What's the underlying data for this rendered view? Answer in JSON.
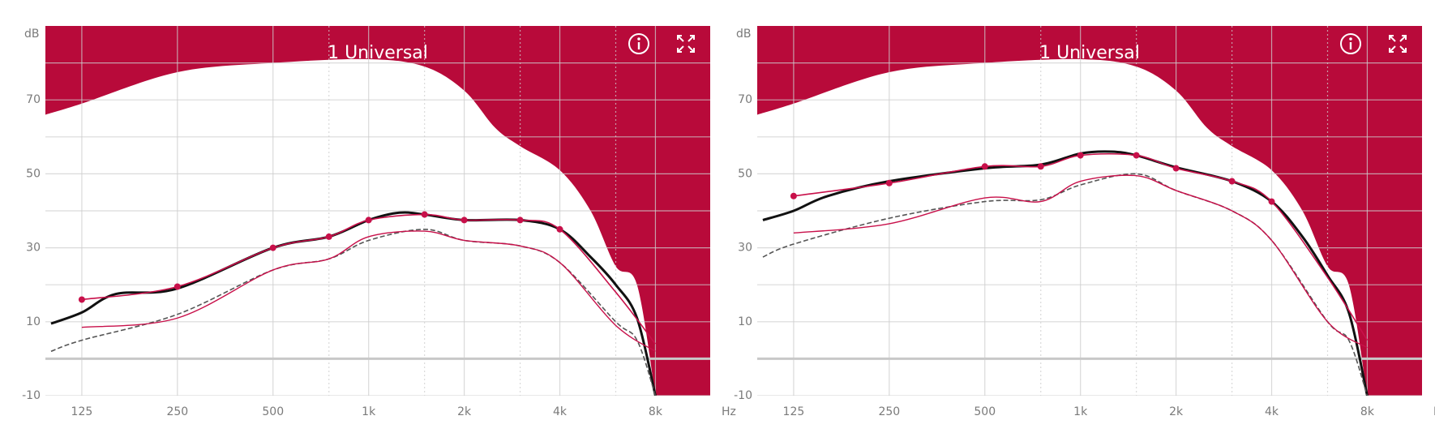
{
  "chart_data": [
    {
      "type": "line",
      "title": "1 Universal",
      "y_label": "dB",
      "x_label": "Hz",
      "log_x": true,
      "xlim": [
        96,
        11900
      ],
      "ylim": [
        -10,
        90
      ],
      "xticks": [
        125,
        250,
        500,
        {
          "value": 1000,
          "label": "1k"
        },
        {
          "value": 2000,
          "label": "2k"
        },
        {
          "value": 4000,
          "label": "4k"
        },
        {
          "value": 8000,
          "label": "8k"
        }
      ],
      "x_dotted_gridlines": [
        750,
        1500,
        3000,
        6000
      ],
      "yticks": [
        -10,
        10,
        30,
        50,
        70
      ],
      "y_minor_gridlines": [
        0,
        20,
        40,
        60,
        80
      ],
      "reference_line": 0,
      "limit_area": {
        "color": "#b80a3a",
        "x": [
          96,
          125,
          250,
          500,
          1000,
          1500,
          2000,
          2500,
          3000,
          4000,
          5000,
          6000,
          7000,
          8000
        ],
        "values": [
          66,
          69,
          77.5,
          80,
          81,
          79,
          72.5,
          62.5,
          57.5,
          51,
          40,
          25,
          20,
          -10
        ]
      },
      "series": [
        {
          "color": "#111111",
          "width": 3,
          "dashed": false,
          "markers": false,
          "x": [
            100,
            125,
            160,
            250,
            500,
            750,
            1000,
            1250,
            1500,
            2000,
            3000,
            4000,
            5000,
            6000,
            7000,
            8000
          ],
          "values": [
            9.5,
            12.5,
            17.5,
            19,
            30,
            33,
            37.5,
            39.5,
            39,
            37.5,
            37.5,
            35,
            27.5,
            20,
            11,
            -10
          ]
        },
        {
          "color": "#555555",
          "width": 1.6,
          "dashed": true,
          "markers": false,
          "x": [
            100,
            125,
            250,
            500,
            750,
            1000,
            1500,
            2000,
            3000,
            4000,
            6000,
            7000,
            8000
          ],
          "values": [
            2,
            5,
            12,
            24,
            27,
            32,
            35,
            32,
            30.5,
            26,
            10,
            5,
            -10
          ]
        },
        {
          "color": "#c8104a",
          "width": 1.6,
          "dashed": false,
          "markers": true,
          "x": [
            125,
            250,
            500,
            750,
            1000,
            1500,
            2000,
            3000,
            4000,
            6000,
            8000
          ],
          "values": [
            16,
            19.5,
            30,
            33,
            37.5,
            39,
            37.5,
            37.5,
            35,
            18,
            4
          ]
        },
        {
          "color": "#c8104a",
          "width": 1.4,
          "dashed": false,
          "markers": false,
          "x": [
            125,
            250,
            500,
            750,
            1000,
            1500,
            2000,
            3000,
            4000,
            6000,
            8000
          ],
          "values": [
            8.5,
            11,
            24,
            27,
            33,
            34.5,
            32,
            30.5,
            26,
            9,
            2
          ]
        }
      ]
    },
    {
      "type": "line",
      "title": "1 Universal",
      "y_label": "dB",
      "x_label": "Hz",
      "log_x": true,
      "xlim": [
        96,
        11900
      ],
      "ylim": [
        -10,
        90
      ],
      "xticks": [
        125,
        250,
        500,
        {
          "value": 1000,
          "label": "1k"
        },
        {
          "value": 2000,
          "label": "2k"
        },
        {
          "value": 4000,
          "label": "4k"
        },
        {
          "value": 8000,
          "label": "8k"
        }
      ],
      "x_dotted_gridlines": [
        750,
        1500,
        3000,
        6000
      ],
      "yticks": [
        -10,
        10,
        30,
        50,
        70
      ],
      "y_minor_gridlines": [
        0,
        20,
        40,
        60,
        80
      ],
      "reference_line": 0,
      "limit_area": {
        "color": "#b80a3a",
        "x": [
          96,
          125,
          250,
          500,
          1000,
          1500,
          2000,
          2500,
          3000,
          4000,
          5000,
          6000,
          7000,
          8000
        ],
        "values": [
          66,
          69,
          77.5,
          80,
          81,
          79,
          72.5,
          62.5,
          57.5,
          51,
          40,
          25,
          20,
          -10
        ]
      },
      "series": [
        {
          "color": "#111111",
          "width": 3,
          "dashed": false,
          "markers": false,
          "x": [
            100,
            125,
            160,
            250,
            500,
            750,
            1000,
            1250,
            1500,
            2000,
            3000,
            4000,
            5000,
            6000,
            7000,
            8000
          ],
          "values": [
            37.5,
            40,
            44,
            48,
            51.5,
            52.5,
            55.5,
            56,
            55,
            51.75,
            48,
            42.5,
            33,
            22.5,
            12.5,
            -10
          ]
        },
        {
          "color": "#555555",
          "width": 1.6,
          "dashed": true,
          "markers": false,
          "x": [
            100,
            125,
            250,
            500,
            750,
            1000,
            1500,
            2000,
            3000,
            4000,
            6000,
            7000,
            8000
          ],
          "values": [
            27.5,
            31,
            38,
            42.5,
            43,
            47,
            50,
            45.5,
            40,
            32,
            10,
            5,
            -10
          ]
        },
        {
          "color": "#c8104a",
          "width": 1.6,
          "dashed": false,
          "markers": true,
          "x": [
            125,
            250,
            500,
            750,
            1000,
            1500,
            2000,
            3000,
            4000,
            6000,
            8000
          ],
          "values": [
            44,
            47.5,
            52,
            52,
            55,
            55,
            51.5,
            48,
            42.5,
            22,
            5
          ]
        },
        {
          "color": "#c8104a",
          "width": 1.4,
          "dashed": false,
          "markers": false,
          "x": [
            125,
            250,
            500,
            750,
            1000,
            1500,
            2000,
            3000,
            4000,
            6000,
            8000
          ],
          "values": [
            34,
            36.5,
            43.5,
            42.5,
            48,
            49.5,
            45.5,
            40,
            32,
            10,
            3
          ]
        }
      ]
    }
  ]
}
